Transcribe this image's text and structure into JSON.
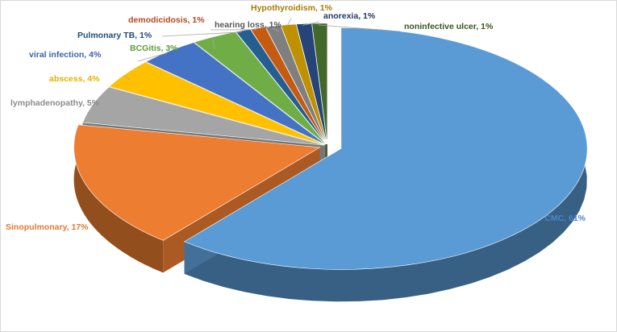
{
  "chart_data": {
    "type": "pie",
    "style": "3d-exploded",
    "title": "",
    "slices": [
      {
        "label": "CMC",
        "value": 61,
        "display": "CMC, 61%",
        "color": "#5b9bd5",
        "label_color": "#4a86c5"
      },
      {
        "label": "Sinopulmonary",
        "value": 17,
        "display": "Sinopulmonary, 17%",
        "color": "#ed7d31",
        "label_color": "#e07b35"
      },
      {
        "label": "lymphadenopathy",
        "value": 5,
        "display": "lymphadenopathy, 5%",
        "color": "#a5a5a5",
        "label_color": "#8c8c8c"
      },
      {
        "label": "abscess",
        "value": 4,
        "display": "abscess, 4%",
        "color": "#ffc000",
        "label_color": "#e8b000"
      },
      {
        "label": "viral infection",
        "value": 4,
        "display": "viral infection, 4%",
        "color": "#4472c4",
        "label_color": "#3a64b0"
      },
      {
        "label": "BCGitis",
        "value": 3,
        "display": "BCGitis, 3%",
        "color": "#70ad47",
        "label_color": "#5e9a36"
      },
      {
        "label": "Pulmonary TB",
        "value": 1,
        "display": "Pulmonary TB, 1%",
        "color": "#255e91",
        "label_color": "#1f4e79"
      },
      {
        "label": "demodicidosis",
        "value": 1,
        "display": "demodicidosis, 1%",
        "color": "#c55a11",
        "label_color": "#b5481c"
      },
      {
        "label": "hearing loss",
        "value": 1,
        "display": "hearing loss, 1%",
        "color": "#7f7f7f",
        "label_color": "#595959"
      },
      {
        "label": "Hypothyroidism",
        "value": 1,
        "display": "Hypothyroidism, 1%",
        "color": "#bf9000",
        "label_color": "#a67c00"
      },
      {
        "label": "anorexia",
        "value": 1,
        "display": "anorexia, 1%",
        "color": "#264478",
        "label_color": "#1f3864"
      },
      {
        "label": "noninfective ulcer",
        "value": 1,
        "display": "noninfective ulcer, 1%",
        "color": "#43682b",
        "label_color": "#38561f"
      }
    ],
    "legend": "none"
  }
}
